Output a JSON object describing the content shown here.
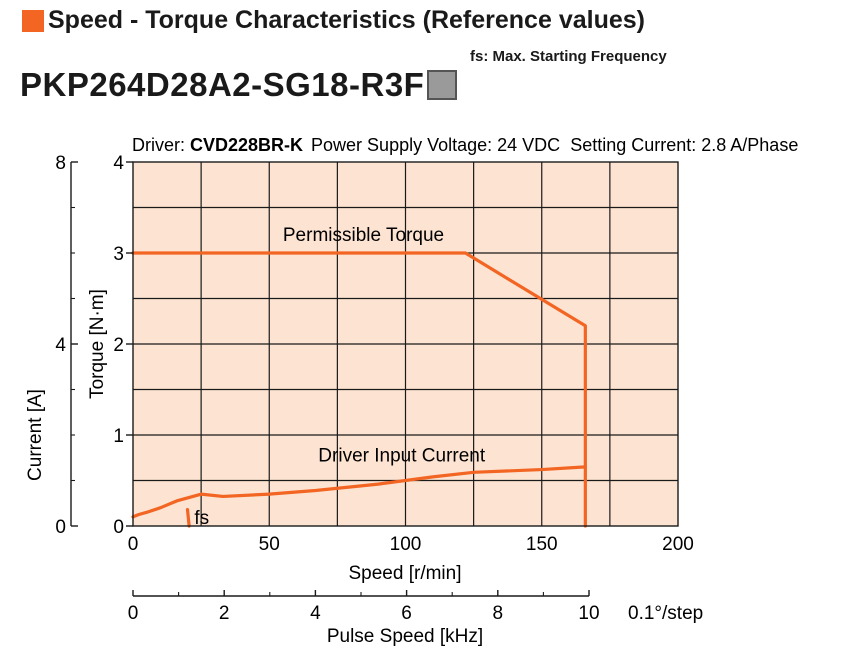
{
  "header": {
    "title": "Speed - Torque Characteristics (Reference values)",
    "fs_note": "fs: Max. Starting Frequency",
    "model": "PKP264D28A2-SG18-R3F",
    "accent_color": "#f26522"
  },
  "driver_info": {
    "driver_label": "Driver: ",
    "driver_name": "CVD228BR-K",
    "supply": "Power Supply Voltage: 24 VDC",
    "current": "Setting Current: 2.8 A/Phase"
  },
  "chart_data": {
    "type": "line",
    "xlabel": "Speed [r/min]",
    "ylabel": "Torque [N·m]",
    "y2label": "Current [A]",
    "x2label": "Pulse Speed [kHz]",
    "x2unit": "0.1°/step",
    "xlim": [
      0,
      200
    ],
    "ylim": [
      0,
      4
    ],
    "y2lim": [
      0,
      8
    ],
    "x2lim": [
      0,
      10
    ],
    "grid": true,
    "xticks": [
      "0",
      "50",
      "100",
      "150",
      "200"
    ],
    "yticks": [
      "0",
      "1",
      "2",
      "3",
      "4"
    ],
    "y2ticks": [
      "0",
      "4",
      "8"
    ],
    "x2ticks": [
      "0",
      "2",
      "4",
      "6",
      "8",
      "10"
    ],
    "background_color": "#fde3d2",
    "series_color": "#f26522",
    "series": [
      {
        "name": "Permissible Torque",
        "x": [
          0,
          122,
          166,
          166
        ],
        "y": [
          3.0,
          3.0,
          2.2,
          0
        ]
      },
      {
        "name": "Driver Input Current",
        "axis": "current",
        "x": [
          0,
          2,
          5,
          10,
          16,
          25,
          33,
          50,
          67,
          90,
          110,
          125,
          150,
          166
        ],
        "y": [
          0.2,
          0.25,
          0.3,
          0.4,
          0.55,
          0.7,
          0.65,
          0.7,
          0.78,
          0.92,
          1.08,
          1.18,
          1.24,
          1.3
        ]
      },
      {
        "name": "fs",
        "x": [
          20,
          20.3,
          20.6
        ],
        "y": [
          0.18,
          0.09,
          0
        ]
      }
    ],
    "annotations": [
      "Permissible Torque",
      "Driver Input Current",
      "fs"
    ]
  }
}
